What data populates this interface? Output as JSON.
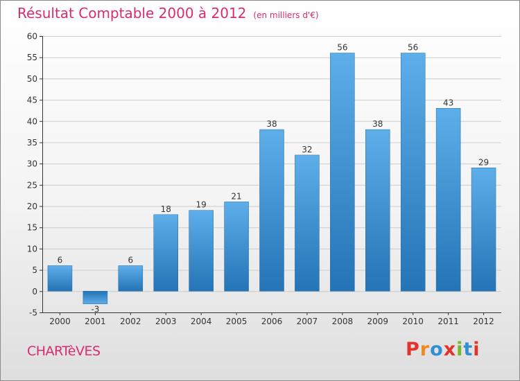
{
  "header": {
    "title": "Résultat Comptable 2000 à 2012",
    "unit": "(en milliers d'€)"
  },
  "footer": {
    "commune": "CHARTèVES",
    "brand": "Proxiti",
    "brand_colors": [
      "#e2332d",
      "#f08a1c",
      "#2f8fd6",
      "#e2332d",
      "#73b72a",
      "#2f8fd6",
      "#e2332d"
    ]
  },
  "colors": {
    "accent": "#d92b6f",
    "bar_top": "#5eaeea",
    "bar_bottom": "#2474b6",
    "axis": "#333333",
    "grid": "#cccccc"
  },
  "chart_data": {
    "type": "bar",
    "categories": [
      "2000",
      "2001",
      "2002",
      "2003",
      "2004",
      "2005",
      "2006",
      "2007",
      "2008",
      "2009",
      "2010",
      "2011",
      "2012"
    ],
    "values": [
      6,
      -3,
      6,
      18,
      19,
      21,
      38,
      32,
      56,
      38,
      56,
      43,
      29
    ],
    "title": "Résultat Comptable 2000 à 2012",
    "xlabel": "",
    "ylabel": "",
    "ylim": [
      -5,
      60
    ],
    "yticks": [
      -5,
      0,
      5,
      10,
      15,
      20,
      25,
      30,
      35,
      40,
      45,
      50,
      55,
      60
    ],
    "grid": true,
    "data_labels": true
  }
}
